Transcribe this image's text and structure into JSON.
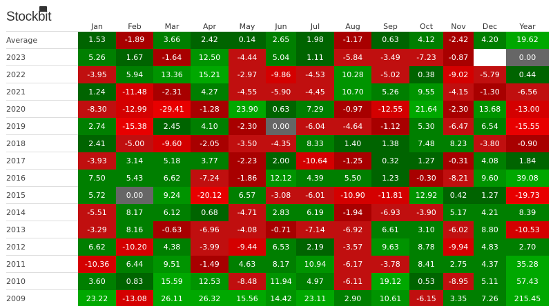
{
  "brand": "Stockbit",
  "chart_data": {
    "type": "heatmap",
    "columns": [
      "Jan",
      "Feb",
      "Mar",
      "Apr",
      "May",
      "Jun",
      "Jul",
      "Aug",
      "Sep",
      "Oct",
      "Nov",
      "Dec",
      "Year"
    ],
    "rows": [
      {
        "label": "Average",
        "values": [
          1.53,
          -1.89,
          3.66,
          2.42,
          0.14,
          2.65,
          1.98,
          -1.17,
          0.63,
          4.12,
          -2.42,
          4.2,
          19.62
        ]
      },
      {
        "label": "2023",
        "values": [
          5.26,
          1.67,
          -1.64,
          12.5,
          -4.44,
          5.04,
          1.11,
          -5.84,
          -3.49,
          -7.23,
          -0.87,
          null,
          0.0
        ]
      },
      {
        "label": "2022",
        "values": [
          -3.95,
          5.94,
          13.36,
          15.21,
          -2.97,
          -9.86,
          -4.53,
          10.28,
          -5.02,
          0.38,
          -9.02,
          -5.79,
          0.44
        ]
      },
      {
        "label": "2021",
        "values": [
          1.24,
          -11.48,
          -2.31,
          4.27,
          -4.55,
          -5.9,
          -4.45,
          10.7,
          5.26,
          9.55,
          -4.15,
          -1.3,
          -6.56
        ]
      },
      {
        "label": "2020",
        "values": [
          -8.3,
          -12.99,
          -29.41,
          -1.28,
          23.9,
          0.63,
          7.29,
          -0.97,
          -12.55,
          21.64,
          -2.3,
          13.68,
          -13.0
        ]
      },
      {
        "label": "2019",
        "values": [
          2.74,
          -15.38,
          2.45,
          4.1,
          -2.3,
          0.0,
          -6.04,
          -4.64,
          -1.12,
          5.3,
          -6.47,
          6.54,
          -15.55
        ]
      },
      {
        "label": "2018",
        "values": [
          2.41,
          -5.0,
          -9.6,
          -2.05,
          -3.5,
          -4.35,
          8.33,
          1.4,
          1.38,
          7.48,
          8.23,
          -3.8,
          -0.9
        ]
      },
      {
        "label": "2017",
        "values": [
          -3.93,
          3.14,
          5.18,
          3.77,
          -2.23,
          2.0,
          -10.64,
          -1.25,
          0.32,
          1.27,
          -0.31,
          4.08,
          1.84
        ]
      },
      {
        "label": "2016",
        "values": [
          7.5,
          5.43,
          6.62,
          -7.24,
          -1.86,
          12.12,
          4.39,
          5.5,
          1.23,
          -0.3,
          -8.21,
          9.6,
          39.08
        ]
      },
      {
        "label": "2015",
        "values": [
          5.72,
          0.0,
          9.24,
          -20.12,
          6.57,
          -3.08,
          -6.01,
          -10.9,
          -11.81,
          12.92,
          0.42,
          1.27,
          -19.73
        ]
      },
      {
        "label": "2014",
        "values": [
          -5.51,
          8.17,
          6.12,
          0.68,
          -4.71,
          2.83,
          6.19,
          -1.94,
          -6.93,
          -3.9,
          5.17,
          4.21,
          8.39
        ]
      },
      {
        "label": "2013",
        "values": [
          -3.29,
          8.16,
          -0.63,
          -6.96,
          -4.08,
          -0.71,
          -7.14,
          -6.92,
          6.61,
          3.1,
          -6.02,
          8.8,
          -10.53
        ]
      },
      {
        "label": "2012",
        "values": [
          6.62,
          -10.2,
          4.38,
          -3.99,
          -9.44,
          6.53,
          2.19,
          -3.57,
          9.63,
          8.78,
          -9.94,
          4.83,
          2.7
        ]
      },
      {
        "label": "2011",
        "values": [
          -10.36,
          6.44,
          9.51,
          -1.49,
          4.63,
          8.17,
          10.94,
          -6.17,
          -3.78,
          8.41,
          2.75,
          4.37,
          35.28
        ]
      },
      {
        "label": "2010",
        "values": [
          3.6,
          0.83,
          15.59,
          12.53,
          -8.48,
          11.94,
          4.97,
          -6.11,
          19.12,
          0.53,
          -8.95,
          5.11,
          57.43
        ]
      },
      {
        "label": "2009",
        "values": [
          23.22,
          -13.08,
          26.11,
          26.32,
          15.56,
          14.42,
          23.11,
          2.9,
          10.61,
          -6.15,
          3.35,
          7.26,
          215.45
        ]
      }
    ],
    "colors": {
      "zero": "#666666",
      "empty": "#ffffff",
      "green": [
        "#006400",
        "#007f00",
        "#009400",
        "#00a800"
      ],
      "red": [
        "#a80000",
        "#c00f0f",
        "#d40000",
        "#e80000"
      ]
    }
  }
}
